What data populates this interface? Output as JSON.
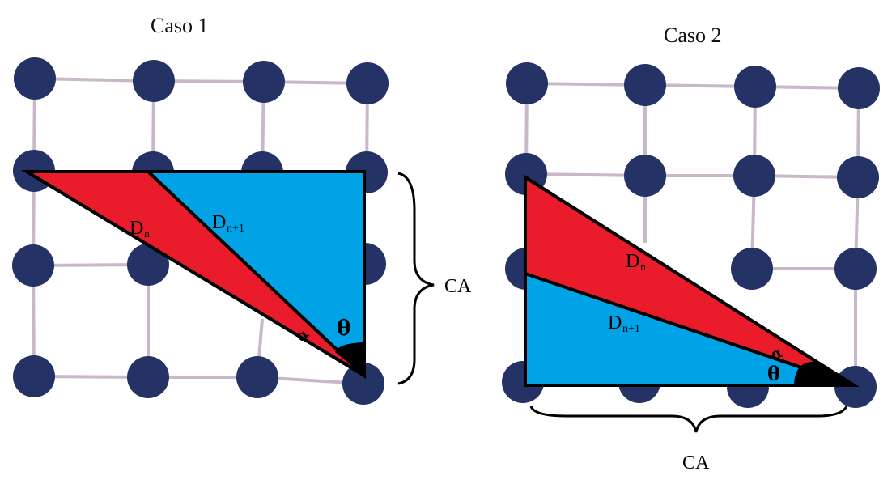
{
  "case1": {
    "title": "Caso 1",
    "d_n_main": "D",
    "d_n_sub": "n",
    "d_n1_main": "D",
    "d_n1_sub": "n+1",
    "theta": "θ",
    "alpha": "α",
    "ca": "CA"
  },
  "case2": {
    "title": "Caso 2",
    "d_n_main": "D",
    "d_n_sub": "n",
    "d_n1_main": "D",
    "d_n1_sub": "n+1",
    "theta": "θ",
    "alpha": "α",
    "ca": "CA"
  },
  "colors": {
    "node": "#243266",
    "grid_line": "#c8b8c8",
    "red": "#ea1c2b",
    "blue": "#02a2e7",
    "outline": "#000000"
  }
}
